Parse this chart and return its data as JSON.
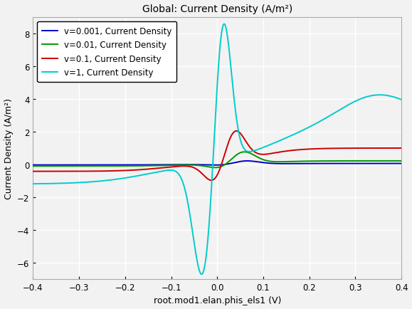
{
  "title": "Global: Current Density (A/m²)",
  "xlabel": "root.mod1.elan.phis_els1 (V)",
  "ylabel": "Current Density (A/m²)",
  "xlim": [
    -0.4,
    0.4
  ],
  "ylim": [
    -7,
    9
  ],
  "yticks": [
    -6,
    -4,
    -2,
    0,
    2,
    4,
    6,
    8
  ],
  "xticks": [
    -0.4,
    -0.3,
    -0.2,
    -0.1,
    0.0,
    0.1,
    0.2,
    0.3,
    0.4
  ],
  "colors": {
    "v0001": "#0000cc",
    "v001": "#009900",
    "v01": "#cc0000",
    "v1": "#00cccc"
  },
  "legend_labels": [
    "v=0.001, Current Density",
    "v=0.01, Current Density",
    "v=0.1, Current Density",
    "v=1, Current Density"
  ],
  "background_color": "#f2f2f2",
  "grid_color": "#ffffff",
  "title_fontsize": 10,
  "label_fontsize": 9,
  "tick_fontsize": 8.5,
  "legend_fontsize": 8.5,
  "linewidth": 1.4
}
